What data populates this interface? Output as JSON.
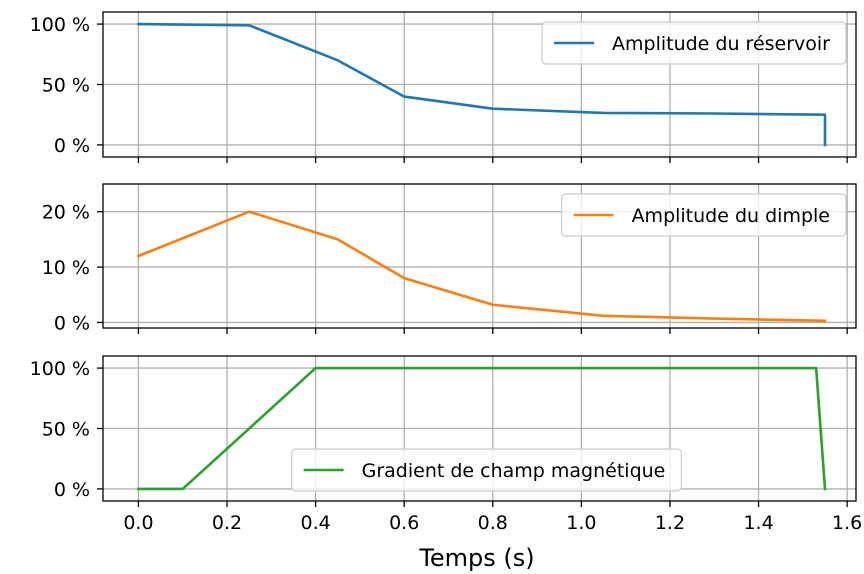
{
  "chart_data": {
    "type": "line",
    "xlabel": "Temps (s)",
    "xlim": [
      -0.08,
      1.62
    ],
    "xticks": [
      0.0,
      0.2,
      0.4,
      0.6,
      0.8,
      1.0,
      1.2,
      1.4,
      1.6
    ],
    "xtick_labels": [
      "0.0",
      "0.2",
      "0.4",
      "0.6",
      "0.8",
      "1.0",
      "1.2",
      "1.4",
      "1.6"
    ],
    "grid": true,
    "shared_x": true,
    "panels": [
      {
        "ylim": [
          -10,
          110
        ],
        "yticks": [
          0,
          50,
          100
        ],
        "ytick_labels": [
          "0 %",
          "50 %",
          "100 %"
        ],
        "legend_position": "top-right",
        "series": [
          {
            "name": "Amplitude du réservoir",
            "color": "#1f77b4",
            "x": [
              0.0,
              0.25,
              0.45,
              0.6,
              0.8,
              1.05,
              1.3,
              1.55,
              1.55
            ],
            "y": [
              100,
              99,
              70,
              40,
              30,
              26.5,
              26,
              25,
              0
            ]
          }
        ]
      },
      {
        "ylim": [
          -1,
          25
        ],
        "yticks": [
          0,
          10,
          20
        ],
        "ytick_labels": [
          "0 %",
          "10 %",
          "20 %"
        ],
        "legend_position": "top-right",
        "series": [
          {
            "name": "Amplitude du dimple",
            "color": "#ff7f0e",
            "x": [
              0.0,
              0.25,
              0.45,
              0.6,
              0.8,
              1.05,
              1.3,
              1.55
            ],
            "y": [
              12,
              20,
              15,
              8,
              3.2,
              1.2,
              0.7,
              0.3
            ]
          }
        ]
      },
      {
        "ylim": [
          -10,
          110
        ],
        "yticks": [
          0,
          50,
          100
        ],
        "ytick_labels": [
          "0 %",
          "50 %",
          "100 %"
        ],
        "legend_position": "bottom-center",
        "series": [
          {
            "name": "Gradient de champ magnétique",
            "color": "#2ca02c",
            "x": [
              0.0,
              0.1,
              0.4,
              1.53,
              1.55
            ],
            "y": [
              0,
              0,
              100,
              100,
              0
            ]
          }
        ]
      }
    ]
  }
}
